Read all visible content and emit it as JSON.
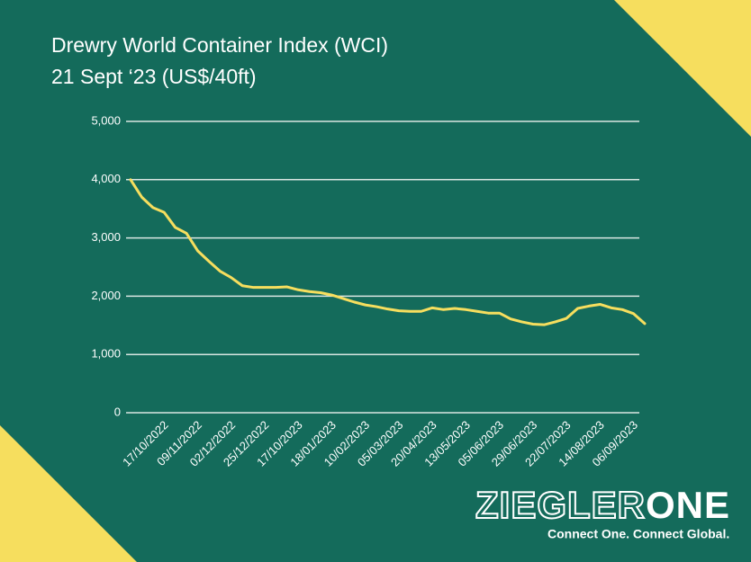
{
  "chart_data": {
    "type": "line",
    "title": "Drewry World Container Index (WCI)",
    "subtitle": "21 Sept ‘23 (US$/40ft)",
    "categories": [
      null,
      null,
      null,
      "17/10/2022",
      null,
      null,
      "09/11/2022",
      null,
      null,
      "02/12/2022",
      null,
      null,
      "25/12/2022",
      null,
      null,
      "17/10/2023",
      null,
      null,
      "18/01/2023",
      null,
      null,
      "10/02/2023",
      null,
      null,
      "05/03/2023",
      null,
      null,
      "20/04/2023",
      null,
      null,
      "13/05/2023",
      null,
      null,
      "05/06/2023",
      null,
      null,
      "29/06/2023",
      null,
      null,
      "22/07/2023",
      null,
      null,
      "14/08/2023",
      null,
      null,
      "06/09/2023",
      null
    ],
    "series": [
      {
        "name": "WCI",
        "color": "#f6de5e",
        "values": [
          4000,
          3700,
          3520,
          3440,
          3180,
          3080,
          2780,
          2600,
          2430,
          2320,
          2180,
          2150,
          2150,
          2150,
          2160,
          2110,
          2080,
          2060,
          2020,
          1960,
          1900,
          1850,
          1820,
          1780,
          1750,
          1740,
          1740,
          1800,
          1770,
          1790,
          1770,
          1740,
          1710,
          1710,
          1610,
          1560,
          1520,
          1510,
          1560,
          1620,
          1790,
          1830,
          1860,
          1800,
          1770,
          1700,
          1530
        ]
      }
    ],
    "ylim": [
      0,
      5000
    ],
    "yticks": [
      0,
      {
        "value": 1000,
        "label": "1,000"
      },
      {
        "value": 2000,
        "label": "2,000"
      },
      {
        "value": 3000,
        "label": "3,000"
      },
      {
        "value": 4000,
        "label": "4,000"
      },
      {
        "value": 5000,
        "label": "5,000"
      }
    ],
    "grid": true,
    "logo": {
      "outline": "ZIEGLER",
      "solid": "ONE",
      "tagline": "Connect One. Connect Global."
    }
  }
}
